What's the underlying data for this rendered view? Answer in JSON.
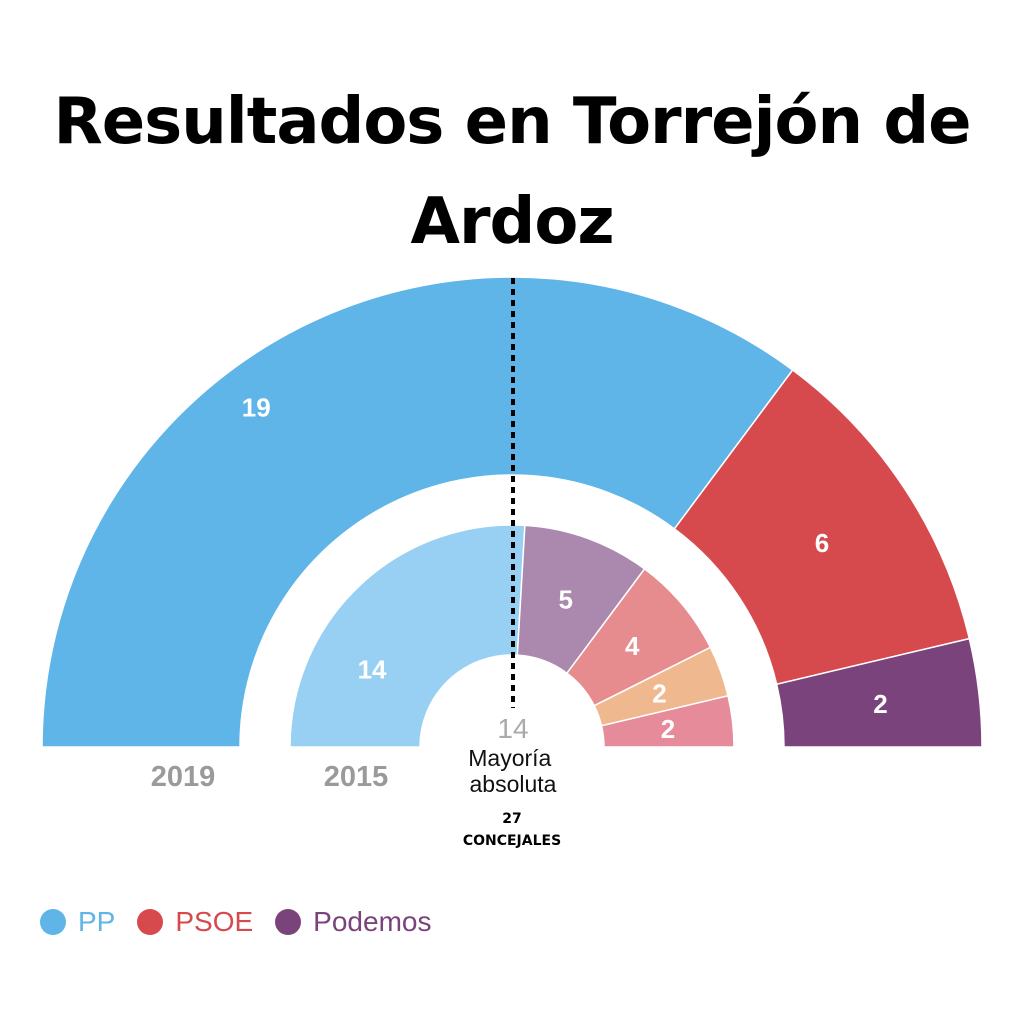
{
  "title": "Resultados en Torrejón de Ardoz",
  "chart_data": {
    "type": "pie",
    "total_seats_label": "27",
    "total_seats_caption": "CONCEJALES",
    "majority": {
      "value": 14,
      "label": "Mayoría absoluta"
    },
    "rings": [
      {
        "year": "2019",
        "slices": [
          {
            "party": "PP",
            "seats": 19,
            "color": "#5fb4e8"
          },
          {
            "party": "PSOE",
            "seats": 6,
            "color": "#d64a4e"
          },
          {
            "party": "Podemos",
            "seats": 2,
            "color": "#7b437b"
          }
        ]
      },
      {
        "year": "2015",
        "slices": [
          {
            "party": "PP",
            "seats": 14,
            "color": "#97d0f2"
          },
          {
            "party": "",
            "seats": 5,
            "color": "#ab88ae"
          },
          {
            "party": "",
            "seats": 4,
            "color": "#e68b8e"
          },
          {
            "party": "",
            "seats": 2,
            "color": "#f0b88f"
          },
          {
            "party": "",
            "seats": 2,
            "color": "#e68b99"
          }
        ]
      }
    ]
  },
  "legend": [
    {
      "label": "PP",
      "color": "#5fb4e8",
      "icon": "dot-icon"
    },
    {
      "label": "PSOE",
      "color": "#d64a4e",
      "icon": "dot-icon"
    },
    {
      "label": "Podemos",
      "color": "#7b437b",
      "icon": "dot-icon"
    }
  ]
}
